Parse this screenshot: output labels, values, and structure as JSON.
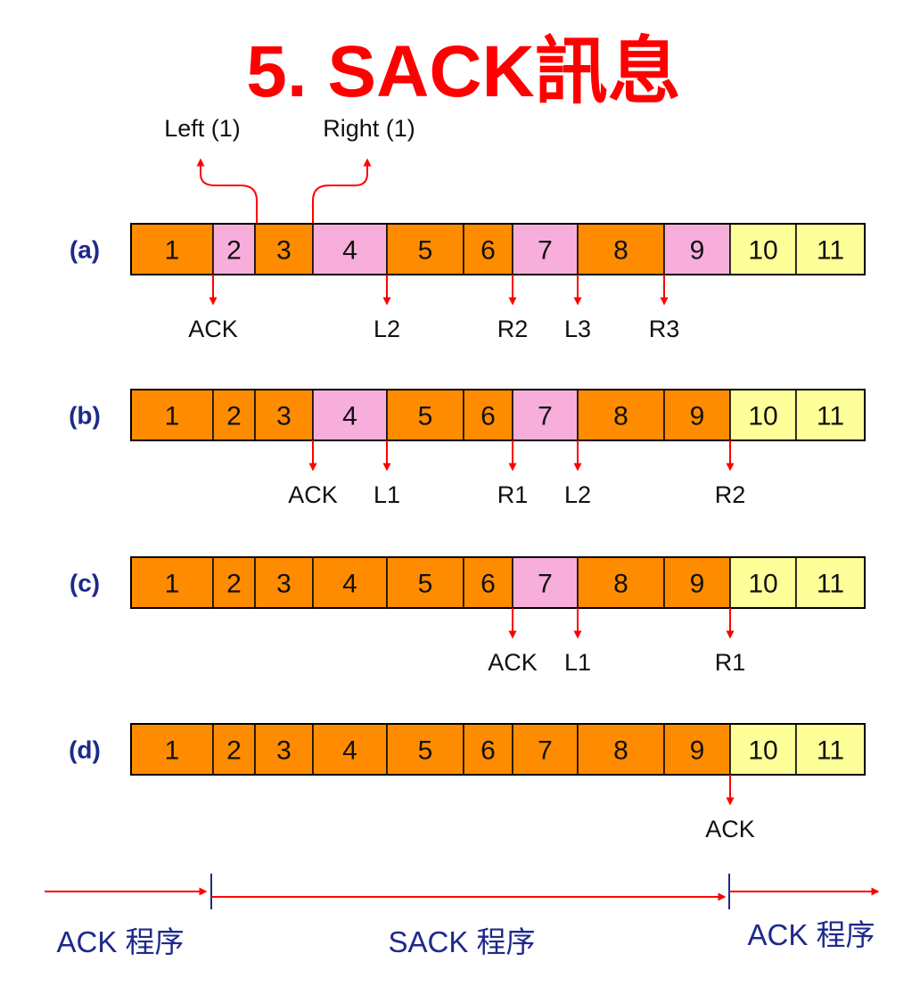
{
  "title": "5. SACK訊息",
  "colors": {
    "title": "#ff0000",
    "received": "#ff8c00",
    "missing": "#f7aedb",
    "window": "#ffff99",
    "arrow": "#ff0000",
    "border": "#000000",
    "label": "#1d2a8a"
  },
  "top_labels": {
    "left": "Left (1)",
    "right": "Right (1)"
  },
  "segments": [
    "1",
    "2",
    "3",
    "4",
    "5",
    "6",
    "7",
    "8",
    "9",
    "10",
    "11"
  ],
  "rows": [
    {
      "id": "a",
      "label": "(a)",
      "states": [
        "received",
        "missing",
        "received",
        "missing",
        "received",
        "received",
        "missing",
        "received",
        "missing",
        "window",
        "window"
      ],
      "markers": [
        {
          "at": 1,
          "text": "ACK"
        },
        {
          "at": 4,
          "text": "L2"
        },
        {
          "at": 6,
          "text": "R2"
        },
        {
          "at": 7,
          "text": "L3"
        },
        {
          "at": 8,
          "text": "R3"
        }
      ]
    },
    {
      "id": "b",
      "label": "(b)",
      "states": [
        "received",
        "received",
        "received",
        "missing",
        "received",
        "received",
        "missing",
        "received",
        "received",
        "window",
        "window"
      ],
      "markers": [
        {
          "at": 3,
          "text": "ACK"
        },
        {
          "at": 4,
          "text": "L1"
        },
        {
          "at": 6,
          "text": "R1"
        },
        {
          "at": 7,
          "text": "L2"
        },
        {
          "at": 9,
          "text": "R2"
        }
      ]
    },
    {
      "id": "c",
      "label": "(c)",
      "states": [
        "received",
        "received",
        "received",
        "received",
        "received",
        "received",
        "missing",
        "received",
        "received",
        "window",
        "window"
      ],
      "markers": [
        {
          "at": 6,
          "text": "ACK"
        },
        {
          "at": 7,
          "text": "L1"
        },
        {
          "at": 9,
          "text": "R1"
        }
      ]
    },
    {
      "id": "d",
      "label": "(d)",
      "states": [
        "received",
        "received",
        "received",
        "received",
        "received",
        "received",
        "received",
        "received",
        "received",
        "window",
        "window"
      ],
      "markers": [
        {
          "at": 9,
          "text": "ACK"
        }
      ]
    }
  ],
  "phases": [
    {
      "id": "ack-left",
      "text": "ACK 程序"
    },
    {
      "id": "sack",
      "text": "SACK 程序"
    },
    {
      "id": "ack-right",
      "text": "ACK 程序"
    }
  ]
}
